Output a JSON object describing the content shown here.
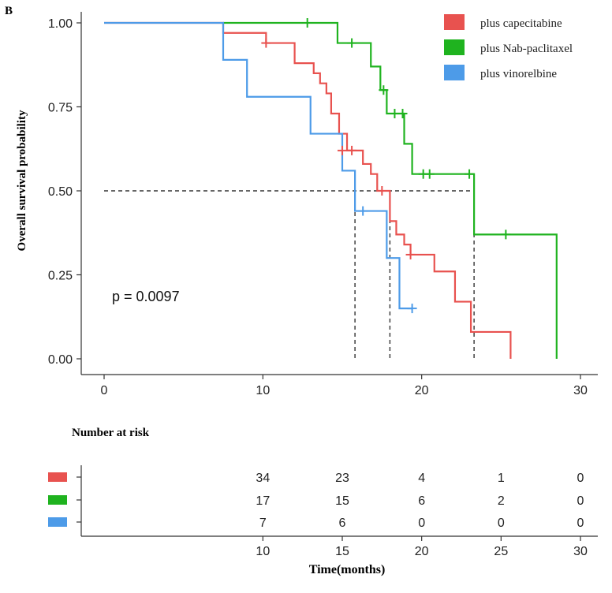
{
  "panel_label": "B",
  "chart_data": {
    "type": "line",
    "subtype": "kaplan-meier",
    "ylabel": "Overall survival probability",
    "xlabel": "Time(months)",
    "xlim": [
      0,
      30
    ],
    "ylim": [
      0,
      1
    ],
    "x_ticks": [
      "0",
      "10",
      "20",
      "30"
    ],
    "y_ticks": [
      "0.00",
      "0.25",
      "0.50",
      "0.75",
      "1.00"
    ],
    "p_value_text": "p = 0.0097",
    "legend_position": "top-right",
    "median_line_y": 0.5,
    "medians": [
      15.8,
      18.0,
      23.3
    ],
    "series": [
      {
        "name": "plus capecitabine",
        "color": "#e8524f",
        "steps": [
          [
            0,
            1.0
          ],
          [
            7.5,
            0.97
          ],
          [
            10.2,
            0.94
          ],
          [
            12.0,
            0.88
          ],
          [
            13.2,
            0.85
          ],
          [
            13.6,
            0.82
          ],
          [
            14.0,
            0.79
          ],
          [
            14.3,
            0.73
          ],
          [
            14.8,
            0.67
          ],
          [
            15.3,
            0.62
          ],
          [
            16.3,
            0.58
          ],
          [
            16.8,
            0.55
          ],
          [
            17.2,
            0.5
          ],
          [
            18.0,
            0.41
          ],
          [
            18.4,
            0.37
          ],
          [
            18.9,
            0.34
          ],
          [
            19.3,
            0.31
          ],
          [
            20.8,
            0.26
          ],
          [
            22.1,
            0.17
          ],
          [
            23.1,
            0.08
          ],
          [
            25.6,
            0.0
          ]
        ],
        "end_x": 25.6,
        "censored": [
          [
            10.2,
            0.94
          ],
          [
            15.0,
            0.62
          ],
          [
            15.6,
            0.62
          ],
          [
            17.5,
            0.5
          ],
          [
            19.3,
            0.31
          ]
        ]
      },
      {
        "name": "plus Nab-paclitaxel",
        "color": "#1fb31f",
        "steps": [
          [
            7.5,
            1.0
          ],
          [
            14.7,
            0.94
          ],
          [
            16.8,
            0.87
          ],
          [
            17.4,
            0.8
          ],
          [
            17.8,
            0.73
          ],
          [
            18.9,
            0.64
          ],
          [
            19.4,
            0.55
          ],
          [
            23.3,
            0.37
          ],
          [
            28.5,
            0.0
          ]
        ],
        "end_x": 28.5,
        "censored": [
          [
            12.8,
            1.0
          ],
          [
            15.6,
            0.94
          ],
          [
            17.6,
            0.8
          ],
          [
            18.3,
            0.73
          ],
          [
            18.8,
            0.73
          ],
          [
            20.1,
            0.55
          ],
          [
            20.5,
            0.55
          ],
          [
            23.0,
            0.55
          ],
          [
            25.3,
            0.37
          ]
        ]
      },
      {
        "name": "plus vinorelbine",
        "color": "#4d9be8",
        "steps": [
          [
            0,
            1.0
          ],
          [
            7.5,
            0.89
          ],
          [
            9.0,
            0.78
          ],
          [
            13.0,
            0.67
          ],
          [
            15.0,
            0.56
          ],
          [
            15.8,
            0.44
          ],
          [
            17.8,
            0.3
          ],
          [
            18.6,
            0.15
          ]
        ],
        "end_x": 19.4,
        "censored": [
          [
            16.3,
            0.44
          ],
          [
            19.4,
            0.15
          ]
        ]
      }
    ]
  },
  "risk_table": {
    "title": "Number at risk",
    "times": [
      "10",
      "15",
      "20",
      "25",
      "30"
    ],
    "rows": [
      {
        "color": "#e8524f",
        "values": [
          "34",
          "23",
          "4",
          "1",
          "0"
        ]
      },
      {
        "color": "#1fb31f",
        "values": [
          "17",
          "15",
          "6",
          "2",
          "0"
        ]
      },
      {
        "color": "#4d9be8",
        "values": [
          "7",
          "6",
          "0",
          "0",
          "0"
        ]
      }
    ]
  }
}
